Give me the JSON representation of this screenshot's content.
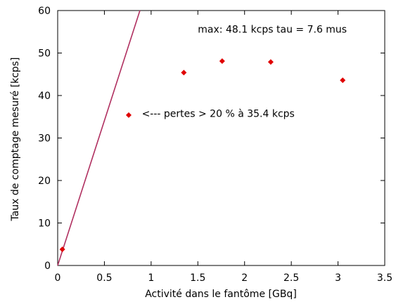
{
  "chart_data": {
    "type": "scatter",
    "title": "",
    "xlabel": "Activité dans le fantôme [GBq]",
    "ylabel": "Taux de comptage mesuré [kcps]",
    "xlim": [
      0,
      3.5
    ],
    "ylim": [
      0,
      60
    ],
    "x_ticks": [
      0,
      0.5,
      1,
      1.5,
      2,
      2.5,
      3,
      3.5
    ],
    "x_tick_labels": [
      "0",
      "0.5",
      "1",
      "1.5",
      "2",
      "2.5",
      "3",
      "3.5"
    ],
    "y_ticks": [
      0,
      10,
      20,
      30,
      40,
      50,
      60
    ],
    "y_tick_labels": [
      "0",
      "10",
      "20",
      "30",
      "40",
      "50",
      "60"
    ],
    "grid": false,
    "legend": "none",
    "series": [
      {
        "type": "scatter",
        "marker": "diamond",
        "color": "#e00000",
        "x": [
          0.05,
          0.76,
          1.35,
          1.76,
          2.28,
          3.05
        ],
        "y": [
          3.8,
          35.4,
          45.4,
          48.1,
          47.9,
          43.6
        ]
      },
      {
        "type": "line",
        "color": "#b03060",
        "x": [
          0,
          0.88
        ],
        "y": [
          0,
          60
        ]
      }
    ],
    "annotations": [
      {
        "text": "max: 48.1 kcps tau = 7.6 mus",
        "x": 1.5,
        "y": 54.8
      },
      {
        "text": "<--- pertes > 20 % à 35.4 kcps",
        "x": 0.9,
        "y": 35.0
      }
    ]
  }
}
